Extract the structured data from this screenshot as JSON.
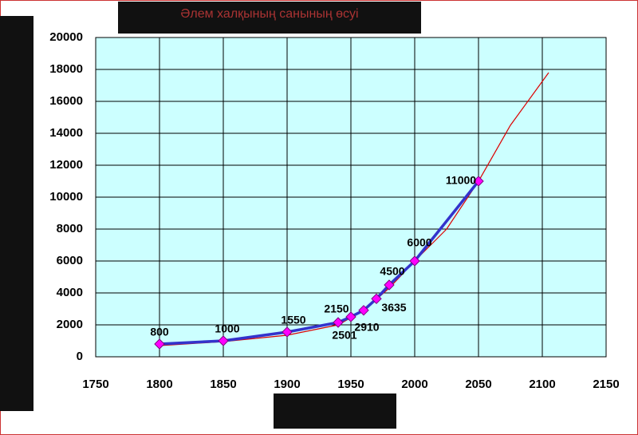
{
  "chart_data": {
    "type": "line",
    "title": "Әлем халқының санының өсуі",
    "x": [
      1800,
      1850,
      1900,
      1940,
      1950,
      1960,
      1970,
      1980,
      2000,
      2050
    ],
    "series": [
      {
        "color": "#3333cc",
        "marker_color": "#ff00ff",
        "values": [
          800,
          1000,
          1550,
          2150,
          2501,
          2910,
          3635,
          4500,
          6000,
          11000
        ]
      }
    ],
    "trend": {
      "color": "#dd0000",
      "x": [
        1800,
        1850,
        1900,
        1940,
        1960,
        1980,
        2000,
        2025,
        2050,
        2075,
        2105
      ],
      "values": [
        700,
        950,
        1350,
        2000,
        2900,
        4300,
        6000,
        8000,
        11000,
        14500,
        17800
      ]
    },
    "xlim": [
      1750,
      2150
    ],
    "xticks": [
      1750,
      1800,
      1850,
      1900,
      1950,
      2000,
      2050,
      2100,
      2150
    ],
    "ylim": [
      0,
      20000
    ],
    "yticks": [
      0,
      2000,
      4000,
      6000,
      8000,
      10000,
      12000,
      14000,
      16000,
      18000,
      20000
    ],
    "grid": true
  }
}
